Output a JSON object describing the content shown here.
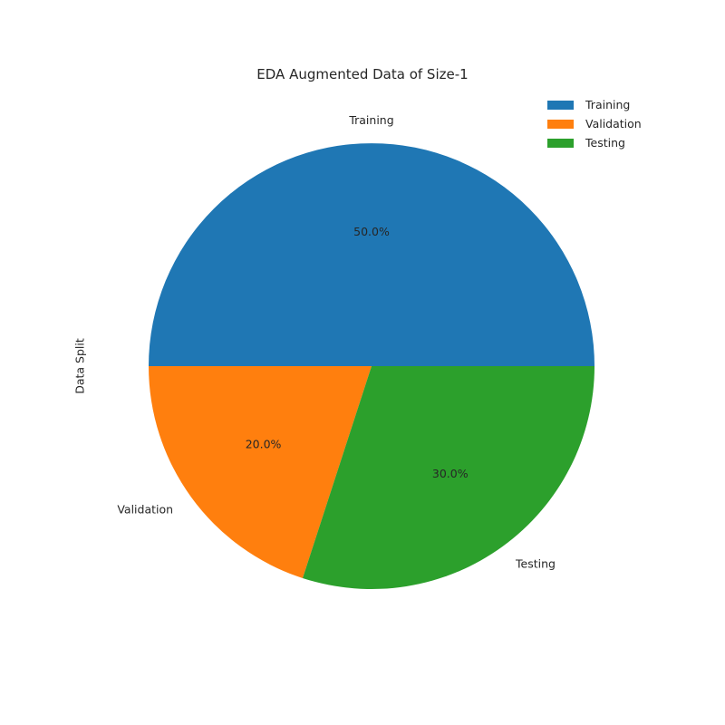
{
  "chart_data": {
    "type": "pie",
    "title": "EDA Augmented Data of Size-1",
    "ylabel": "Data Split",
    "categories": [
      "Training",
      "Validation",
      "Testing"
    ],
    "values": [
      50.0,
      20.0,
      30.0
    ],
    "pct_labels": [
      "50.0%",
      "20.0%",
      "30.0%"
    ],
    "colors": [
      "#1f77b4",
      "#ff7f0e",
      "#2ca02c"
    ],
    "legend": {
      "placement": "top-right",
      "entries": [
        "Training",
        "Validation",
        "Testing"
      ]
    },
    "start_angle_deg": 0,
    "direction": "counterclockwise"
  }
}
